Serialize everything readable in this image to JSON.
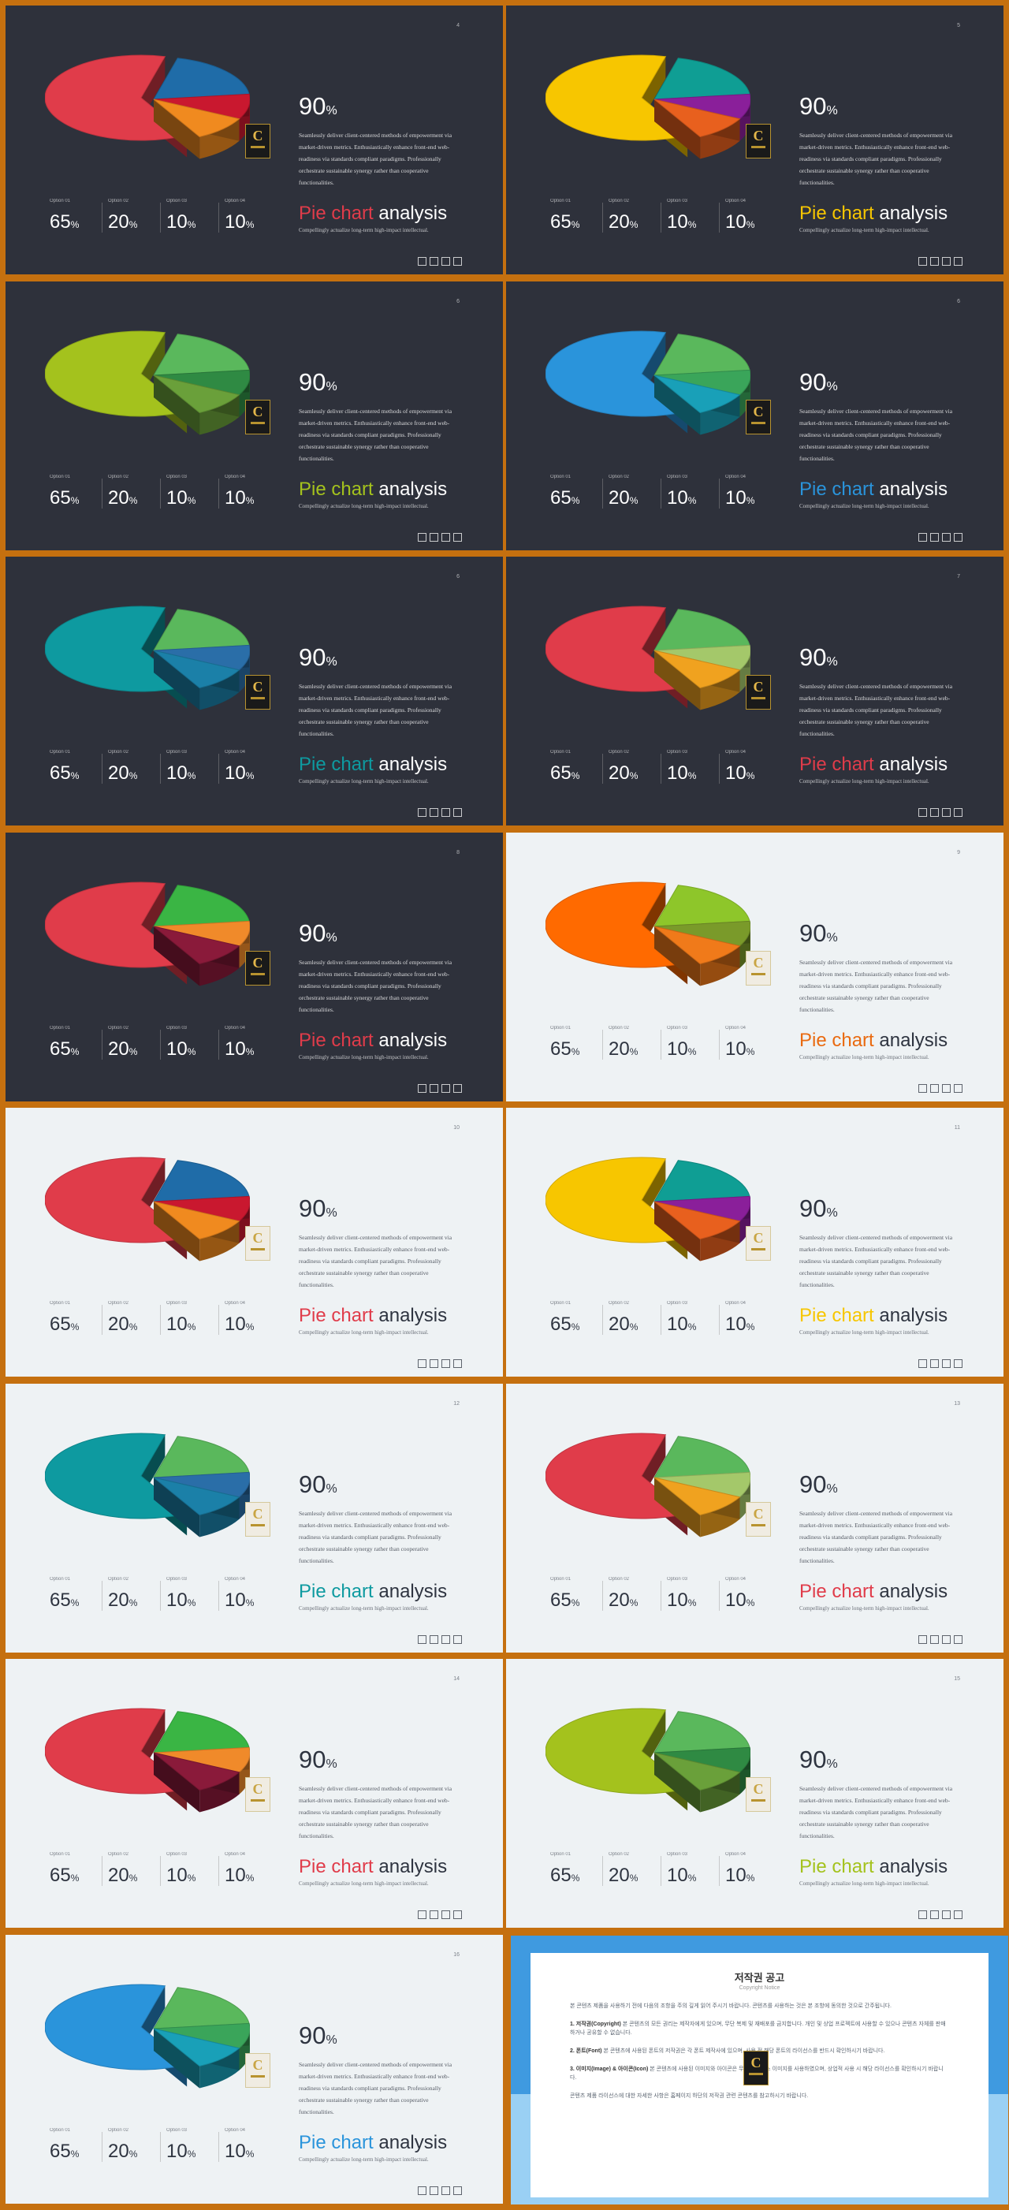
{
  "common": {
    "big_value": "90",
    "big_unit": "%",
    "description": "Seamlessly deliver client-centered methods of empowerment via market-driven metrics. Enthusiastically enhance front-end web-readiness via standards compliant paradigms. Professionally orchestrate sustainable synergy rather than cooperative functionalities.",
    "title_word2": "analysis",
    "subtitle": "Compellingly actualize long-term high-impact intellectual.",
    "options": [
      {
        "label": "Option 01",
        "value": "65",
        "unit": "%"
      },
      {
        "label": "Option 02",
        "value": "20",
        "unit": "%"
      },
      {
        "label": "Option 03",
        "value": "10",
        "unit": "%"
      },
      {
        "label": "Option 04",
        "value": "10",
        "unit": "%"
      }
    ],
    "social_icons": [
      "facebook-icon",
      "twitter-icon",
      "linkedin-icon",
      "instagram-icon"
    ],
    "logo_letter": "C"
  },
  "chart_data": {
    "type": "pie",
    "categories": [
      "Option 01",
      "Option 02",
      "Option 03",
      "Option 04"
    ],
    "values": [
      65,
      20,
      10,
      10
    ],
    "unit": "%"
  },
  "slides": [
    {
      "page": "4",
      "theme": "dark",
      "title_word1": "Pie chart",
      "accent": "#e03c4a",
      "colors": [
        "#e03c4a",
        "#1f6ca8",
        "#c9182f",
        "#f08a1f"
      ]
    },
    {
      "page": "5",
      "theme": "dark",
      "title_word1": "Pie chart",
      "accent": "#f7c600",
      "colors": [
        "#f7c600",
        "#0f9e94",
        "#8a1f9a",
        "#e8601e"
      ]
    },
    {
      "page": "6",
      "theme": "dark",
      "title_word1": "Pie chart",
      "accent": "#a4c21d",
      "colors": [
        "#a4c21d",
        "#5ab85c",
        "#2f8a43",
        "#6aa03a"
      ]
    },
    {
      "page": "6",
      "theme": "dark",
      "title_word1": "Pie chart",
      "accent": "#2a94db",
      "colors": [
        "#2a94db",
        "#5ab85c",
        "#3aa55a",
        "#19a0b8"
      ]
    },
    {
      "page": "6",
      "theme": "dark",
      "title_word1": "Pie chart",
      "accent": "#0e9aa0",
      "colors": [
        "#0e9aa0",
        "#5ab85c",
        "#2a6ea8",
        "#1b80a8"
      ]
    },
    {
      "page": "7",
      "theme": "dark",
      "title_word1": "Pie chart",
      "accent": "#e03c4a",
      "colors": [
        "#e03c4a",
        "#5ab85c",
        "#a4c86a",
        "#f0a21f"
      ]
    },
    {
      "page": "8",
      "theme": "dark",
      "title_word1": "Pie chart",
      "accent": "#e03c4a",
      "colors": [
        "#e03c4a",
        "#3ab544",
        "#f08a2a",
        "#8a1a3a"
      ]
    },
    {
      "page": "9",
      "theme": "light",
      "title_word1": "Pie chart",
      "accent": "#e96a10",
      "colors": [
        "#ff6a00",
        "#8ec62a",
        "#7a9a2a",
        "#f07a1a"
      ]
    },
    {
      "page": "10",
      "theme": "light",
      "title_word1": "Pie chart",
      "accent": "#e03c4a",
      "colors": [
        "#e03c4a",
        "#1f6ca8",
        "#c9182f",
        "#f08a1f"
      ]
    },
    {
      "page": "11",
      "theme": "light",
      "title_word1": "Pie chart",
      "accent": "#f7c600",
      "colors": [
        "#f7c600",
        "#0f9e94",
        "#8a1f9a",
        "#e8601e"
      ]
    },
    {
      "page": "12",
      "theme": "light",
      "title_word1": "Pie chart",
      "accent": "#0e9aa0",
      "colors": [
        "#0e9aa0",
        "#5ab85c",
        "#2a6ea8",
        "#1b80a8"
      ]
    },
    {
      "page": "13",
      "theme": "light",
      "title_word1": "Pie chart",
      "accent": "#e03c4a",
      "colors": [
        "#e03c4a",
        "#5ab85c",
        "#a4c86a",
        "#f0a21f"
      ]
    },
    {
      "page": "14",
      "theme": "light",
      "title_word1": "Pie chart",
      "accent": "#e03c4a",
      "colors": [
        "#e03c4a",
        "#3ab544",
        "#f08a2a",
        "#8a1a3a"
      ]
    },
    {
      "page": "15",
      "theme": "light",
      "title_word1": "Pie chart",
      "accent": "#a4c21d",
      "colors": [
        "#a4c21d",
        "#5ab85c",
        "#2f8a43",
        "#6aa03a"
      ]
    },
    {
      "page": "16",
      "theme": "light",
      "title_word1": "Pie chart",
      "accent": "#2a94db",
      "colors": [
        "#2a94db",
        "#5ab85c",
        "#3aa55a",
        "#19a0b8"
      ]
    }
  ],
  "copyright": {
    "title": "저작권 공고",
    "subtitle": "Copyright Notice",
    "intro": "본 콘텐츠 제품을 사용하기 전에 다음의 조항을 주의 깊게 읽어 주시기 바랍니다. 콘텐츠를 사용하는 것은 본 조항에 동의한 것으로 간주됩니다.",
    "item1_title": "1. 저작권(Copyright)",
    "item1": "본 콘텐츠의 모든 권리는 제작자에게 있으며, 무단 복제 및 재배포를 금지합니다. 개인 및 상업 프로젝트에 사용할 수 있으나 콘텐츠 자체를 판매하거나 공유할 수 없습니다.",
    "item2_title": "2. 폰트(Font)",
    "item2": "본 콘텐츠에 사용된 폰트의 저작권은 각 폰트 제작사에 있으며, 사용 전 해당 폰트의 라이선스를 반드시 확인하시기 바랍니다.",
    "item3_title": "3. 이미지(Image) & 아이콘(Icon)",
    "item3": "본 콘텐츠에 사용된 이미지와 아이콘은 무료 라이선스 이미지를 사용하였으며, 상업적 사용 시 해당 라이선스를 확인하시기 바랍니다.",
    "outro": "콘텐츠 제품 라이선스에 대한 자세한 사항은 홈페이지 하단의 저작권 관련 콘텐츠를 참고하시기 바랍니다."
  }
}
